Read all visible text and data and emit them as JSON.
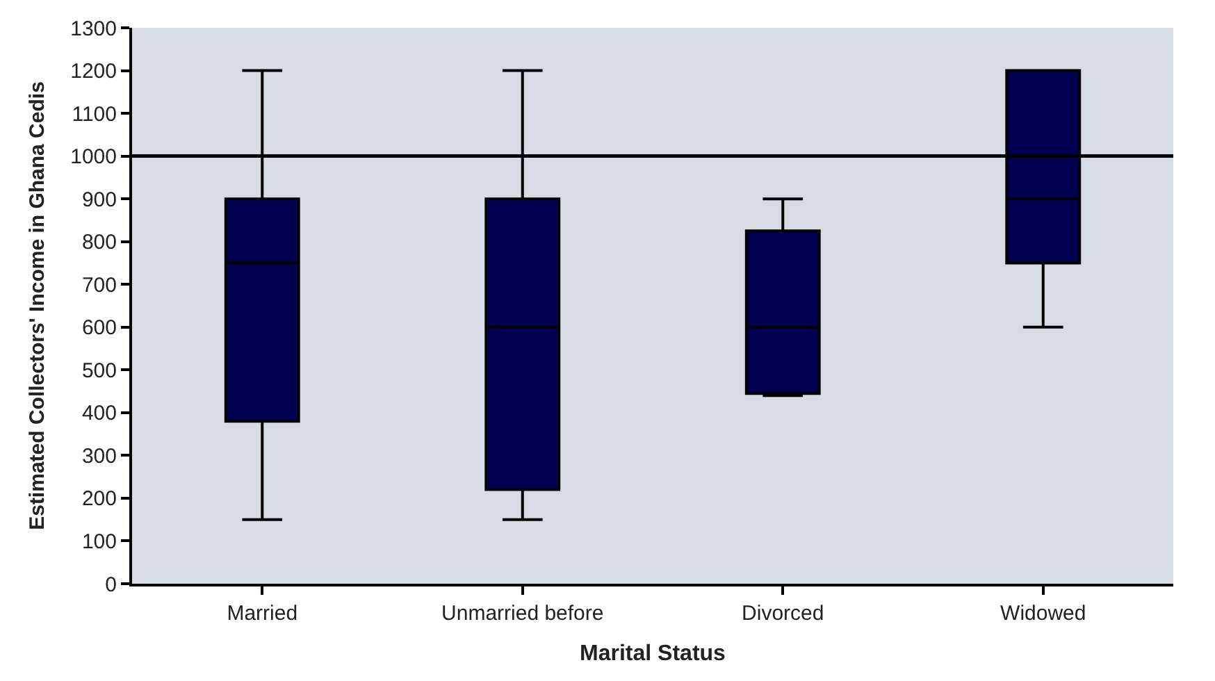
{
  "chart_data": {
    "type": "box",
    "xlabel": "Marital Status",
    "ylabel": "Estimated Collectors' Income in Ghana Cedis",
    "categories": [
      "Married",
      "Unmarried before",
      "Divorced",
      "Widowed"
    ],
    "boxes": [
      {
        "low": 150,
        "q1": 380,
        "median": 750,
        "q3": 900,
        "high": 1200
      },
      {
        "low": 150,
        "q1": 220,
        "median": 600,
        "q3": 900,
        "high": 1200
      },
      {
        "low": 440,
        "q1": 445,
        "median": 600,
        "q3": 825,
        "high": 900
      },
      {
        "low": 600,
        "q1": 750,
        "median": 900,
        "q3": 1200,
        "high": 1200
      }
    ],
    "color": "#000050",
    "ylim": [
      0,
      1300
    ],
    "yticks": [
      0,
      100,
      200,
      300,
      400,
      500,
      600,
      700,
      800,
      900,
      1000,
      1100,
      1200,
      1300
    ],
    "ref_lines": [
      {
        "axis": "y",
        "value": 1000,
        "color": "#000000"
      }
    ]
  }
}
